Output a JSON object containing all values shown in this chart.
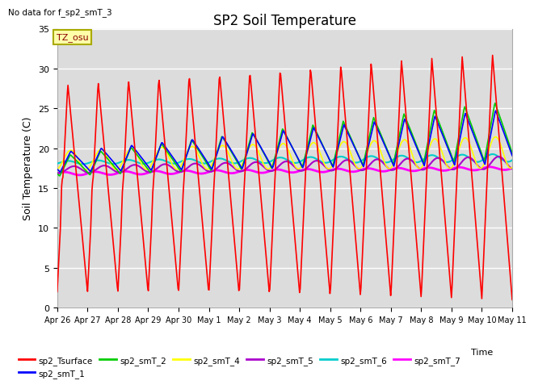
{
  "title": "SP2 Soil Temperature",
  "ylabel": "Soil Temperature (C)",
  "xlabel": "Time",
  "no_data_text": "No data for f_sp2_smT_3",
  "tz_label": "TZ_osu",
  "ylim": [
    0,
    35
  ],
  "background_color": "#dcdcdc",
  "x_tick_labels": [
    "Apr 26",
    "Apr 27",
    "Apr 28",
    "Apr 29",
    "Apr 30",
    "May 1",
    "May 2",
    "May 3",
    "May 4",
    "May 5",
    "May 6",
    "May 7",
    "May 8",
    "May 9",
    "May 10",
    "May 11"
  ],
  "series_colors": {
    "sp2_Tsurface": "#ff0000",
    "sp2_smT_1": "#0000ff",
    "sp2_smT_2": "#00cc00",
    "sp2_smT_4": "#ffff00",
    "sp2_smT_5": "#aa00cc",
    "sp2_smT_6": "#00cccc",
    "sp2_smT_7": "#ff00ff"
  },
  "days": 15,
  "pts_per_day": 48
}
